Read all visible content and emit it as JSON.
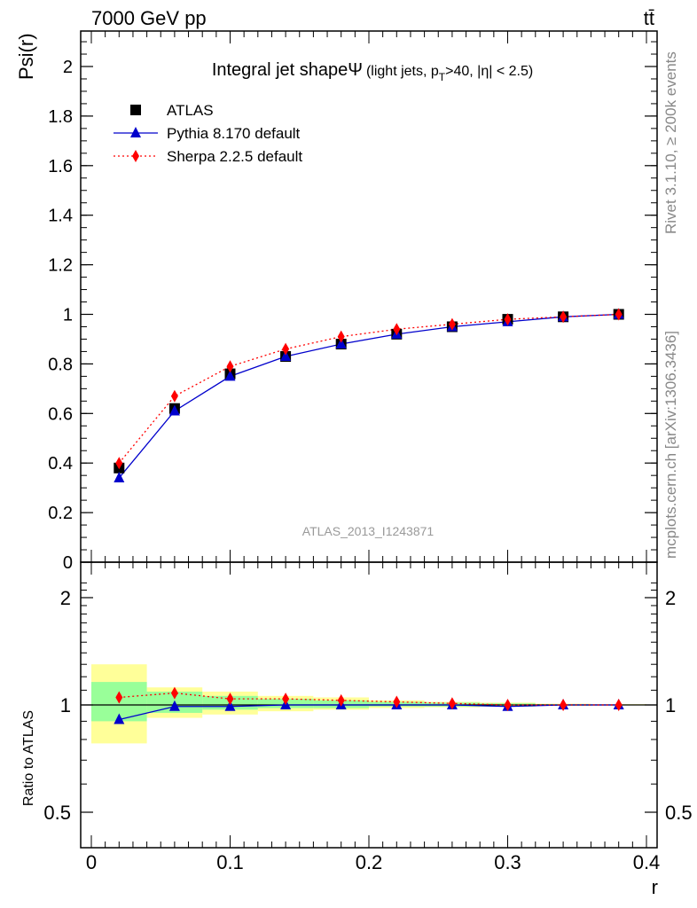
{
  "header": {
    "energy_label": "7000 GeV pp",
    "process_label": "tt̄"
  },
  "side_labels": {
    "rivet": "Rivet 3.1.10, ≥ 200k events",
    "mcplots": "mcplots.cern.ch [arXiv:1306.3436]"
  },
  "watermark": "ATLAS_2013_I1243871",
  "colors": {
    "atlas": "#000000",
    "pythia": "#0000cc",
    "sherpa": "#ff0000",
    "band_inner": "#99ff99",
    "band_outer": "#ffff99"
  },
  "chart_data": [
    {
      "type": "line",
      "title_main": "Integral jet shape",
      "title_symbol": "Ψ",
      "title_detail": "(light jets, p",
      "title_sub": "T",
      "title_tail": ">40, |η| < 2.5)",
      "ylabel": "Psi(r)",
      "xlabel": "",
      "xlim": [
        0,
        0.4
      ],
      "ylim": [
        0,
        2.15
      ],
      "yticks": [
        "0",
        "0.2",
        "0.4",
        "0.6",
        "0.8",
        "1",
        "1.2",
        "1.4",
        "1.6",
        "1.8",
        "2"
      ],
      "legend_placement": "top-left",
      "x": [
        0.02,
        0.06,
        0.1,
        0.14,
        0.18,
        0.22,
        0.26,
        0.3,
        0.34,
        0.38
      ],
      "series": [
        {
          "name": "ATLAS",
          "marker": "square",
          "values": [
            0.38,
            0.62,
            0.76,
            0.83,
            0.88,
            0.92,
            0.95,
            0.98,
            0.99,
            1.0
          ]
        },
        {
          "name": "Pythia 8.170 default",
          "marker": "triangle",
          "values": [
            0.34,
            0.61,
            0.75,
            0.83,
            0.88,
            0.92,
            0.95,
            0.97,
            0.99,
            1.0
          ]
        },
        {
          "name": "Sherpa 2.2.5 default",
          "marker": "diamond",
          "values": [
            0.4,
            0.67,
            0.79,
            0.86,
            0.91,
            0.94,
            0.96,
            0.98,
            0.99,
            1.0
          ]
        }
      ]
    },
    {
      "type": "line",
      "ylabel": "Ratio to ATLAS",
      "xlabel": "r",
      "xlim": [
        0,
        0.4
      ],
      "ylim": [
        0.4,
        2.3
      ],
      "yscale": "log",
      "xticks": [
        "0",
        "0.1",
        "0.2",
        "0.3",
        "0.4"
      ],
      "yticks": [
        "0.5",
        "1",
        "2"
      ],
      "bin_edges": [
        0,
        0.04,
        0.08,
        0.12,
        0.16,
        0.2,
        0.24,
        0.28,
        0.32,
        0.36,
        0.4
      ],
      "band_inner": [
        [
          0.9,
          1.16
        ],
        [
          0.95,
          1.09
        ],
        [
          0.97,
          1.06
        ],
        [
          0.98,
          1.04
        ],
        [
          0.98,
          1.03
        ],
        [
          0.99,
          1.02
        ],
        [
          0.99,
          1.015
        ],
        [
          0.99,
          1.01
        ],
        [
          0.995,
          1.005
        ],
        [
          0.997,
          1.003
        ]
      ],
      "band_outer": [
        [
          0.78,
          1.3
        ],
        [
          0.92,
          1.12
        ],
        [
          0.94,
          1.09
        ],
        [
          0.96,
          1.06
        ],
        [
          0.97,
          1.05
        ],
        [
          0.98,
          1.03
        ],
        [
          0.985,
          1.02
        ],
        [
          0.99,
          1.015
        ],
        [
          0.995,
          1.008
        ],
        [
          0.997,
          1.005
        ]
      ],
      "x": [
        0.02,
        0.06,
        0.1,
        0.14,
        0.18,
        0.22,
        0.26,
        0.3,
        0.34,
        0.38
      ],
      "series": [
        {
          "name": "Pythia 8.170 default",
          "marker": "triangle",
          "values": [
            0.91,
            0.99,
            0.99,
            1.0,
            1.0,
            1.0,
            1.0,
            0.99,
            1.0,
            1.0
          ]
        },
        {
          "name": "Sherpa 2.2.5 default",
          "marker": "diamond",
          "values": [
            1.05,
            1.08,
            1.04,
            1.04,
            1.03,
            1.02,
            1.01,
            1.0,
            1.0,
            1.0
          ]
        }
      ]
    }
  ]
}
